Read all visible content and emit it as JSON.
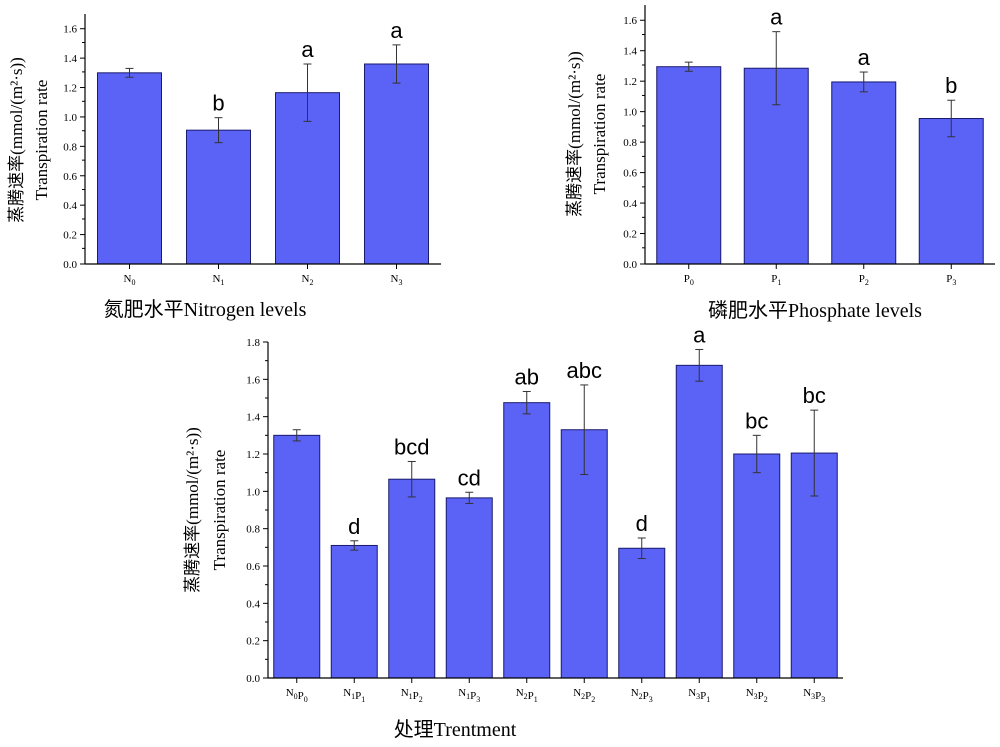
{
  "chart_data": [
    {
      "type": "bar",
      "categories": [
        {
          "base": "N",
          "sub": "0"
        },
        {
          "base": "N",
          "sub": "1"
        },
        {
          "base": "N",
          "sub": "2"
        },
        {
          "base": "N",
          "sub": "3"
        }
      ],
      "values": [
        1.3,
        0.91,
        1.165,
        1.36
      ],
      "errors": [
        0.03,
        0.085,
        0.195,
        0.13
      ],
      "significance": [
        "",
        "b",
        "a",
        "a"
      ],
      "xlabel": "氮肥水平Nitrogen levels",
      "ylabel_cn": "蒸腾速率(mmol/(m²·s))",
      "ylabel_en": "Transpiration rate",
      "ylim": [
        0,
        1.7
      ],
      "yticks": [
        "0.0",
        "0.2",
        "0.4",
        "0.6",
        "0.8",
        "1.0",
        "1.2",
        "1.4",
        "1.6"
      ],
      "bar_color": "#5b63f7"
    },
    {
      "type": "bar",
      "categories": [
        {
          "base": "P",
          "sub": "0"
        },
        {
          "base": "P",
          "sub": "1"
        },
        {
          "base": "P",
          "sub": "2"
        },
        {
          "base": "P",
          "sub": "3"
        }
      ],
      "values": [
        1.295,
        1.285,
        1.195,
        0.955
      ],
      "errors": [
        0.03,
        0.24,
        0.065,
        0.12
      ],
      "significance": [
        "",
        "a",
        "a",
        "b"
      ],
      "xlabel": "磷肥水平Phosphate levels",
      "ylabel_cn": "蒸腾速率(mmol/(m²·s))",
      "ylabel_en": "Transpiration rate",
      "ylim": [
        0,
        1.7
      ],
      "yticks": [
        "0.0",
        "0.2",
        "0.4",
        "0.6",
        "0.8",
        "1.0",
        "1.2",
        "1.4",
        "1.6"
      ],
      "bar_color": "#5b63f7"
    },
    {
      "type": "bar",
      "categories": [
        {
          "parts": [
            [
              "N",
              "0"
            ],
            [
              "P",
              "0"
            ]
          ]
        },
        {
          "parts": [
            [
              "N",
              "1"
            ],
            [
              "P",
              "1"
            ]
          ]
        },
        {
          "parts": [
            [
              "N",
              "1"
            ],
            [
              "P",
              "2"
            ]
          ]
        },
        {
          "parts": [
            [
              "N",
              "1"
            ],
            [
              "P",
              "3"
            ]
          ]
        },
        {
          "parts": [
            [
              "N",
              "2"
            ],
            [
              "P",
              "1"
            ]
          ]
        },
        {
          "parts": [
            [
              "N",
              "2"
            ],
            [
              "P",
              "2"
            ]
          ]
        },
        {
          "parts": [
            [
              "N",
              "2"
            ],
            [
              "P",
              "3"
            ]
          ]
        },
        {
          "parts": [
            [
              "N",
              "3"
            ],
            [
              "P",
              "1"
            ]
          ]
        },
        {
          "parts": [
            [
              "N",
              "3"
            ],
            [
              "P",
              "2"
            ]
          ]
        },
        {
          "parts": [
            [
              "N",
              "3"
            ],
            [
              "P",
              "3"
            ]
          ]
        }
      ],
      "values": [
        1.3,
        0.71,
        1.065,
        0.965,
        1.475,
        1.33,
        0.695,
        1.675,
        1.2,
        1.205
      ],
      "errors": [
        0.03,
        0.025,
        0.095,
        0.03,
        0.06,
        0.24,
        0.055,
        0.085,
        0.1,
        0.23
      ],
      "significance": [
        "",
        "d",
        "bcd",
        "cd",
        "ab",
        "abc",
        "d",
        "a",
        "bc",
        "bc"
      ],
      "xlabel": "处理Trentment",
      "ylabel_cn": "蒸腾速率(mmol/(m²·s))",
      "ylabel_en": "Transpiration rate",
      "ylim": [
        0,
        1.8
      ],
      "yticks": [
        "0.0",
        "0.2",
        "0.4",
        "0.6",
        "0.8",
        "1.0",
        "1.2",
        "1.4",
        "1.6",
        "1.8"
      ],
      "bar_color": "#5b63f7"
    }
  ]
}
